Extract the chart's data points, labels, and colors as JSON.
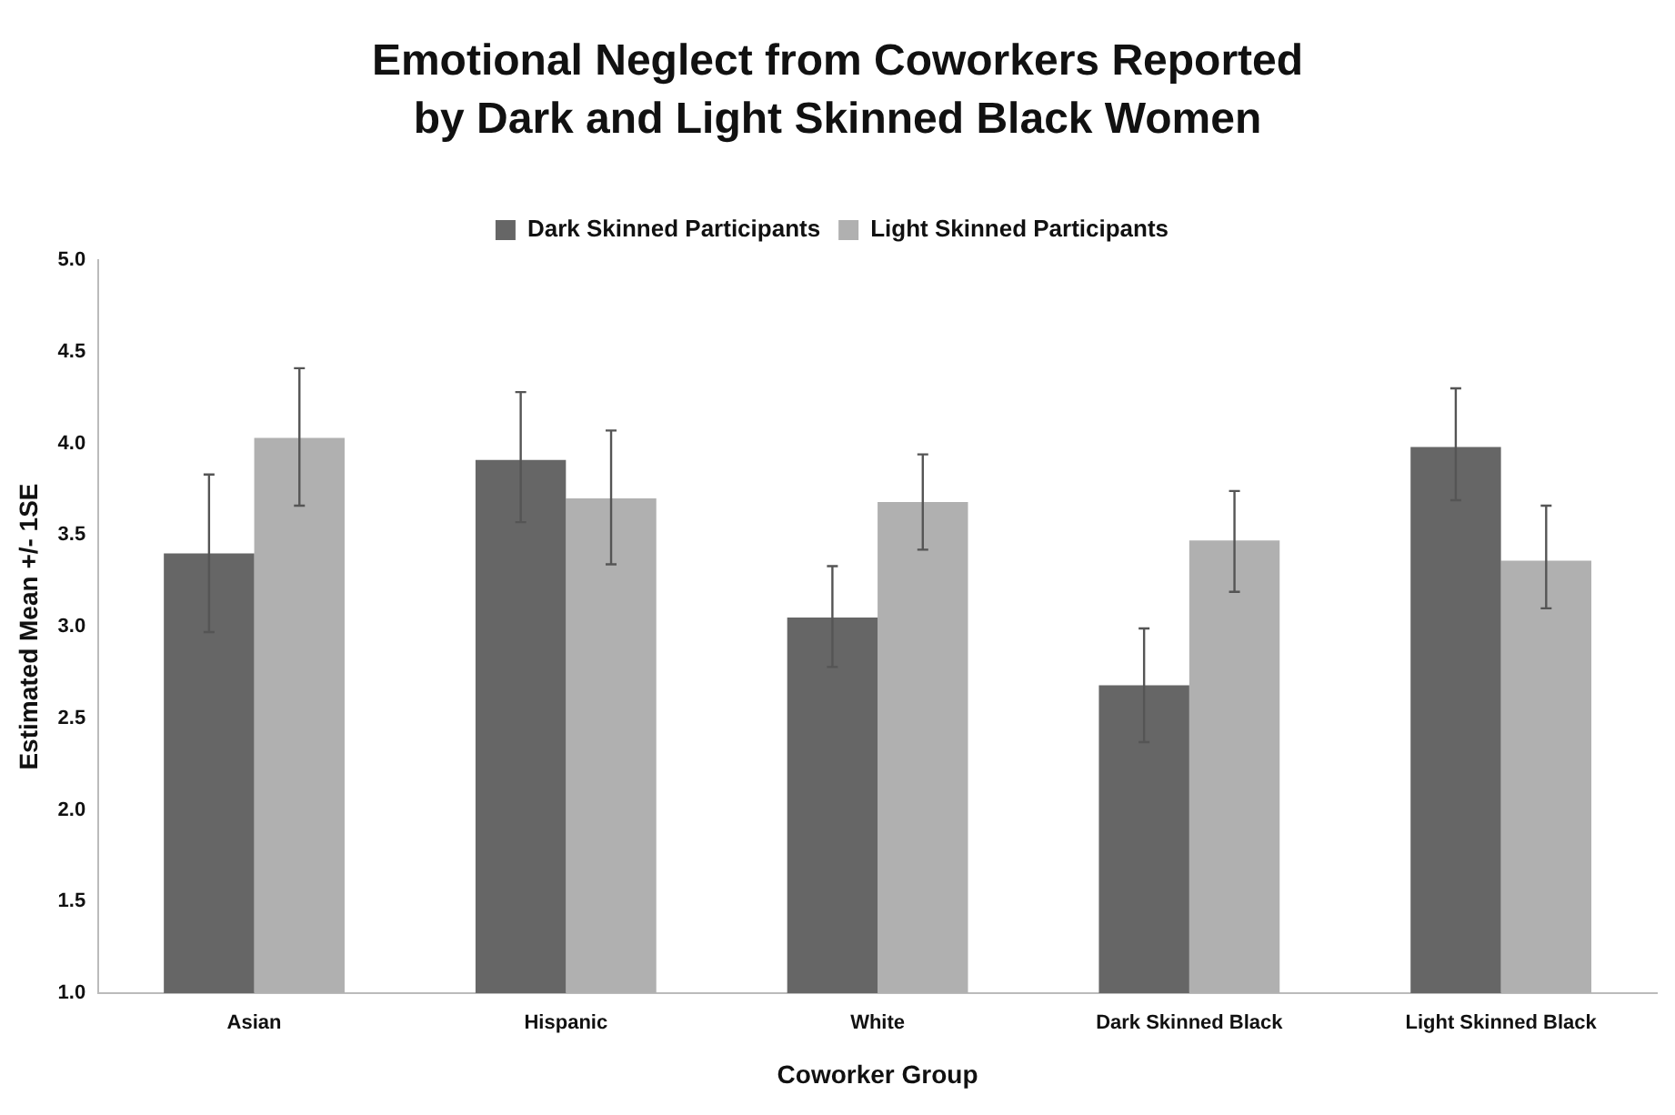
{
  "chart_data": {
    "type": "bar",
    "title": "Emotional Neglect from Coworkers Reported by Dark and Light Skinned Black Women",
    "xlabel": "Coworker Group",
    "ylabel": "Estimated Mean +/- 1SE",
    "categories": [
      "Asian",
      "Hispanic",
      "White",
      "Dark Skinned Black",
      "Light Skinned Black"
    ],
    "series": [
      {
        "name": "Dark Skinned Participants",
        "color": "#666666",
        "values": [
          3.4,
          3.91,
          3.05,
          2.68,
          3.98
        ],
        "errors": [
          [
            2.97,
            3.83
          ],
          [
            3.57,
            4.28
          ],
          [
            2.78,
            3.33
          ],
          [
            2.37,
            2.99
          ],
          [
            3.69,
            4.3
          ]
        ]
      },
      {
        "name": "Light Skinned Participants",
        "color": "#b0b0b0",
        "values": [
          4.03,
          3.7,
          3.68,
          3.47,
          3.36
        ],
        "errors": [
          [
            3.66,
            4.41
          ],
          [
            3.34,
            4.07
          ],
          [
            3.42,
            3.94
          ],
          [
            3.19,
            3.74
          ],
          [
            3.1,
            3.66
          ]
        ]
      }
    ],
    "ylim": [
      1.0,
      5.0
    ],
    "yticks": [
      {
        "value": 1,
        "label": "1.0"
      },
      {
        "value": 1.5,
        "label": "1.5"
      },
      {
        "value": 2,
        "label": "2.0"
      },
      {
        "value": 2.5,
        "label": "2.5"
      },
      {
        "value": 3,
        "label": "3.0"
      },
      {
        "value": 3.5,
        "label": "3.5"
      },
      {
        "value": 4,
        "label": "4.0"
      },
      {
        "value": 4.5,
        "label": "4.5"
      },
      {
        "value": 5,
        "label": "5.0"
      }
    ],
    "grid": false,
    "legend": "top"
  }
}
